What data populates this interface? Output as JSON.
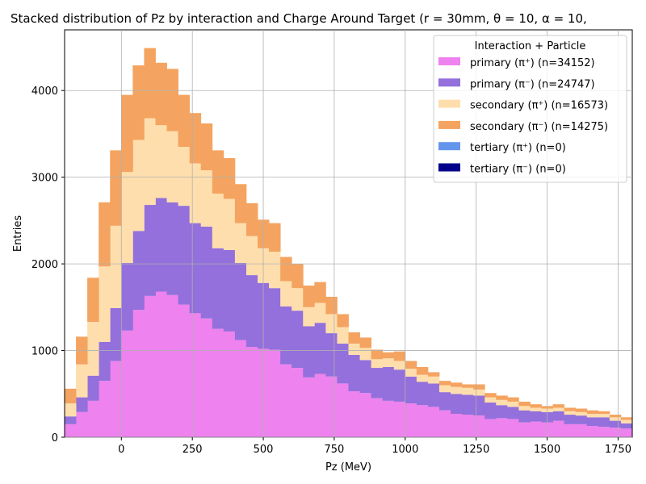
{
  "chart_data": {
    "type": "bar",
    "stacked": true,
    "histogram": true,
    "title": "Stacked distribution of Pz by interaction and Charge Around Target (r = 30mm, θ = 10, α = 10,",
    "xlabel": "Pz (MeV)",
    "ylabel": "Entries",
    "xlim": [
      -200,
      1800
    ],
    "ylim": [
      0,
      4700
    ],
    "xticks": [
      0,
      250,
      500,
      750,
      1000,
      1250,
      1500,
      1750
    ],
    "yticks": [
      0,
      1000,
      2000,
      3000,
      4000
    ],
    "grid": true,
    "legend": {
      "placement": "top-right",
      "title": "Interaction + Particle",
      "entries": [
        {
          "label": "primary (π⁺) (n=34152)",
          "color": "#ee82ee"
        },
        {
          "label": "primary (π⁻) (n=24747)",
          "color": "#9370db"
        },
        {
          "label": "secondary (π⁺) (n=16573)",
          "color": "#ffdead"
        },
        {
          "label": "secondary (π⁻) (n=14275)",
          "color": "#f4a460"
        },
        {
          "label": "tertiary (π⁺) (n=0)",
          "color": "#6495ed"
        },
        {
          "label": "tertiary (π⁻) (n=0)",
          "color": "#00008b"
        }
      ]
    },
    "bin_edges": [
      -200,
      -160,
      -120,
      -80,
      -40,
      0,
      40,
      80,
      120,
      160,
      200,
      240,
      280,
      320,
      360,
      400,
      440,
      480,
      520,
      560,
      600,
      640,
      680,
      720,
      760,
      800,
      840,
      880,
      920,
      960,
      1000,
      1040,
      1080,
      1120,
      1160,
      1200,
      1240,
      1280,
      1320,
      1360,
      1400,
      1440,
      1480,
      1520,
      1560,
      1600,
      1640,
      1680,
      1720,
      1760,
      1800
    ],
    "series": [
      {
        "name": "primary (π⁺) (n=34152)",
        "color": "#ee82ee",
        "values": [
          150,
          290,
          420,
          650,
          880,
          1230,
          1470,
          1630,
          1680,
          1640,
          1530,
          1430,
          1370,
          1250,
          1220,
          1120,
          1040,
          1020,
          1010,
          840,
          800,
          690,
          730,
          700,
          620,
          530,
          510,
          450,
          420,
          410,
          390,
          370,
          350,
          310,
          270,
          260,
          250,
          210,
          220,
          210,
          170,
          180,
          170,
          190,
          150,
          150,
          130,
          120,
          110,
          100
        ]
      },
      {
        "name": "primary (π⁻) (n=24747)",
        "color": "#9370db",
        "values": [
          90,
          170,
          290,
          450,
          610,
          780,
          910,
          1050,
          1080,
          1070,
          1140,
          1040,
          1060,
          930,
          940,
          890,
          830,
          760,
          710,
          670,
          660,
          590,
          590,
          500,
          460,
          420,
          380,
          350,
          390,
          370,
          310,
          270,
          270,
          210,
          230,
          230,
          230,
          190,
          150,
          140,
          140,
          120,
          120,
          110,
          110,
          100,
          100,
          110,
          80,
          60
        ]
      },
      {
        "name": "secondary (π⁺) (n=16573)",
        "color": "#ffdead",
        "values": [
          150,
          380,
          620,
          870,
          950,
          1050,
          1050,
          1000,
          840,
          820,
          680,
          690,
          650,
          630,
          590,
          460,
          450,
          400,
          420,
          290,
          260,
          220,
          230,
          220,
          190,
          130,
          140,
          100,
          100,
          100,
          90,
          80,
          80,
          80,
          80,
          80,
          70,
          60,
          60,
          60,
          50,
          40,
          40,
          40,
          40,
          40,
          40,
          40,
          40,
          40
        ]
      },
      {
        "name": "secondary (π⁻) (n=14275)",
        "color": "#f4a460",
        "values": [
          170,
          320,
          510,
          740,
          870,
          890,
          860,
          810,
          720,
          720,
          600,
          580,
          540,
          500,
          470,
          450,
          380,
          330,
          330,
          280,
          280,
          250,
          240,
          200,
          150,
          130,
          120,
          110,
          70,
          110,
          90,
          90,
          50,
          50,
          50,
          40,
          60,
          50,
          50,
          50,
          50,
          40,
          30,
          40,
          40,
          40,
          40,
          30,
          30,
          30
        ]
      },
      {
        "name": "tertiary (π⁺) (n=0)",
        "color": "#6495ed",
        "values": [
          0,
          0,
          0,
          0,
          0,
          0,
          0,
          0,
          0,
          0,
          0,
          0,
          0,
          0,
          0,
          0,
          0,
          0,
          0,
          0,
          0,
          0,
          0,
          0,
          0,
          0,
          0,
          0,
          0,
          0,
          0,
          0,
          0,
          0,
          0,
          0,
          0,
          0,
          0,
          0,
          0,
          0,
          0,
          0,
          0,
          0,
          0,
          0,
          0,
          0
        ]
      },
      {
        "name": "tertiary (π⁻) (n=0)",
        "color": "#00008b",
        "values": [
          0,
          0,
          0,
          0,
          0,
          0,
          0,
          0,
          0,
          0,
          0,
          0,
          0,
          0,
          0,
          0,
          0,
          0,
          0,
          0,
          0,
          0,
          0,
          0,
          0,
          0,
          0,
          0,
          0,
          0,
          0,
          0,
          0,
          0,
          0,
          0,
          0,
          0,
          0,
          0,
          0,
          0,
          0,
          0,
          0,
          0,
          0,
          0,
          0,
          0
        ]
      }
    ]
  }
}
